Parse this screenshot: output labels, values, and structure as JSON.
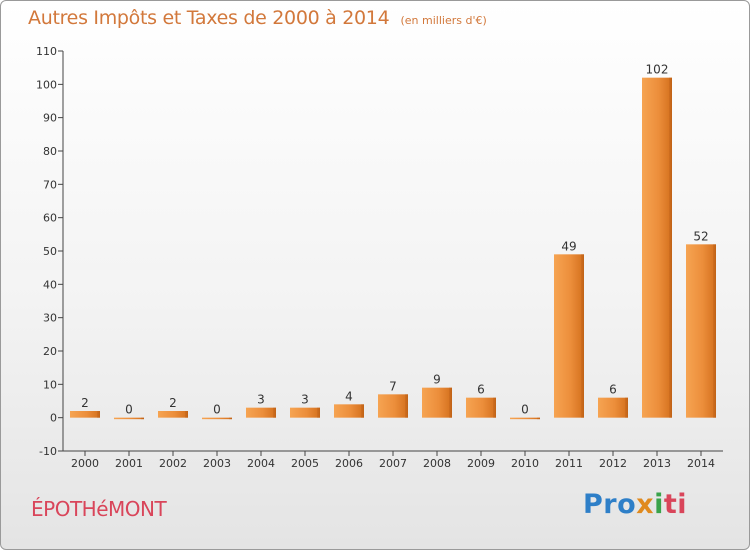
{
  "chart_data": {
    "type": "bar",
    "title": "Autres Impôts et Taxes de 2000 à 2014",
    "subtitle": "(en milliers d'€)",
    "categories": [
      "2000",
      "2001",
      "2002",
      "2003",
      "2004",
      "2005",
      "2006",
      "2007",
      "2008",
      "2009",
      "2010",
      "2011",
      "2012",
      "2013",
      "2014"
    ],
    "values": [
      2,
      0,
      2,
      0,
      3,
      3,
      4,
      7,
      9,
      6,
      0,
      49,
      6,
      102,
      52
    ],
    "xlabel": "",
    "ylabel": "",
    "ylim": [
      -10,
      110
    ],
    "yticks": [
      -10,
      0,
      10,
      20,
      30,
      40,
      50,
      60,
      70,
      80,
      90,
      100,
      110
    ],
    "grid": false,
    "bar_color": "#ea8b38"
  },
  "place_name": "ÉPOTHéMONT",
  "logo": {
    "p1": "Pro",
    "p2": "x",
    "p3": "i",
    "p4": "ti"
  }
}
